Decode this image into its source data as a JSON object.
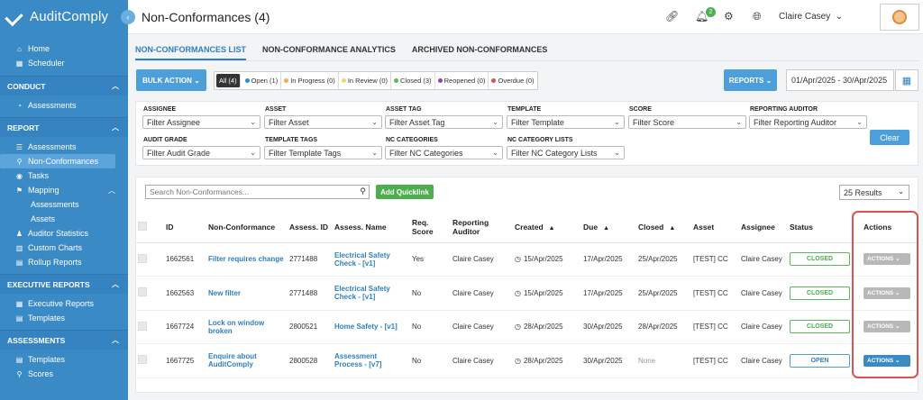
{
  "app": {
    "logo_text": "AuditComply",
    "collapse_icon": "‹"
  },
  "sidebar": {
    "top_items": [
      {
        "label": "Home",
        "icon": "home-icon"
      },
      {
        "label": "Scheduler",
        "icon": "calendar-icon"
      }
    ],
    "sections": [
      {
        "title": "CONDUCT",
        "items": [
          {
            "label": "Assessments"
          }
        ]
      },
      {
        "title": "REPORT",
        "items": [
          {
            "label": "Assessments"
          },
          {
            "label": "Non-Conformances"
          },
          {
            "label": "Tasks"
          },
          {
            "label": "Mapping"
          },
          {
            "label": "Assessments"
          },
          {
            "label": "Assets"
          },
          {
            "label": "Auditor Statistics"
          },
          {
            "label": "Custom Charts"
          },
          {
            "label": "Rollup Reports"
          }
        ]
      },
      {
        "title": "EXECUTIVE REPORTS",
        "items": [
          {
            "label": "Executive Reports"
          },
          {
            "label": "Templates"
          }
        ]
      },
      {
        "title": "ASSESSMENTS",
        "items": [
          {
            "label": "Templates"
          },
          {
            "label": "Scores"
          }
        ]
      }
    ]
  },
  "header": {
    "title": "Non-Conformances (4)",
    "notification_count": "2",
    "user_name": "Claire Casey"
  },
  "tabs": [
    {
      "label": "NON-CONFORMANCES LIST"
    },
    {
      "label": "NON-CONFORMANCE ANALYTICS"
    },
    {
      "label": "ARCHIVED NON-CONFORMANCES"
    }
  ],
  "toolbar": {
    "bulk_action": "BULK ACTION",
    "reports": "REPORTS",
    "date_range": "01/Apr/2025 - 30/Apr/2025",
    "status_filters": [
      {
        "label": "All (4)",
        "color": ""
      },
      {
        "label": "Open (1)",
        "color": "#3a8ac6"
      },
      {
        "label": "In Progress (0)",
        "color": "#f0ad4e"
      },
      {
        "label": "In Review (0)",
        "color": "#f5d36b"
      },
      {
        "label": "Closed (3)",
        "color": "#5cb85c"
      },
      {
        "label": "Reopened (0)",
        "color": "#8e44ad"
      },
      {
        "label": "Overdue (0)",
        "color": "#d9534f"
      }
    ]
  },
  "filters": {
    "assignee_label": "ASSIGNEE",
    "assignee_value": "Filter Assignee",
    "asset_label": "ASSET",
    "asset_value": "Filter Asset",
    "asset_tag_label": "ASSET TAG",
    "asset_tag_value": "Filter Asset Tag",
    "template_label": "TEMPLATE",
    "template_value": "Filter Template",
    "score_label": "SCORE",
    "score_value": "Filter Score",
    "reporting_auditor_label": "REPORTING AUDITOR",
    "reporting_auditor_value": "Filter Reporting Auditor",
    "audit_grade_label": "AUDIT GRADE",
    "audit_grade_value": "Filter Audit Grade",
    "template_tags_label": "TEMPLATE TAGS",
    "template_tags_value": "Filter Template Tags",
    "nc_categories_label": "NC CATEGORIES",
    "nc_categories_value": "Filter NC Categories",
    "nc_category_lists_label": "NC CATEGORY LISTS",
    "nc_category_lists_value": "Filter NC Category Lists",
    "clear": "Clear"
  },
  "table": {
    "search_placeholder": "Search Non-Conformances...",
    "add_quicklink": "Add Quicklink",
    "results": "25 Results",
    "columns": [
      "ID",
      "Non-Conformance",
      "Assess. ID",
      "Assess. Name",
      "Req. Score",
      "Reporting Auditor",
      "Created",
      "Due",
      "Closed",
      "Asset",
      "Assignee",
      "Status",
      "Actions"
    ],
    "rows": [
      {
        "id": "1662561",
        "nc": "Filter requires change",
        "assess_id": "2771488",
        "assess_name": "Electrical Safety Check - [v1]",
        "req_score": "Yes",
        "auditor": "Claire Casey",
        "created": "15/Apr/2025",
        "due": "17/Apr/2025",
        "closed": "25/Apr/2025",
        "asset": "[TEST] CC",
        "assignee": "Claire Casey",
        "status": "CLOSED",
        "action": "ACTIONS ⌄"
      },
      {
        "id": "1662563",
        "nc": "New filter",
        "assess_id": "2771488",
        "assess_name": "Electrical Safety Check - [v1]",
        "req_score": "No",
        "auditor": "Claire Casey",
        "created": "15/Apr/2025",
        "due": "17/Apr/2025",
        "closed": "25/Apr/2025",
        "asset": "[TEST] CC",
        "assignee": "Claire Casey",
        "status": "CLOSED",
        "action": "ACTIONS ⌄"
      },
      {
        "id": "1667724",
        "nc": "Lock on window broken",
        "assess_id": "2800521",
        "assess_name": "Home Safety - [v1]",
        "req_score": "No",
        "auditor": "Claire Casey",
        "created": "28/Apr/2025",
        "due": "30/Apr/2025",
        "closed": "28/Apr/2025",
        "asset": "[TEST] CC",
        "assignee": "Claire Casey",
        "status": "CLOSED",
        "action": "ACTIONS ⌄"
      },
      {
        "id": "1667725",
        "nc": "Enquire about AuditComply",
        "assess_id": "2800528",
        "assess_name": "Assessment Process - [v7]",
        "req_score": "No",
        "auditor": "Claire Casey",
        "created": "28/Apr/2025",
        "due": "30/Apr/2025",
        "closed": "None",
        "asset": "[TEST] CC",
        "assignee": "Claire Casey",
        "status": "OPEN",
        "action": "ACTIONS ⌄"
      }
    ]
  }
}
